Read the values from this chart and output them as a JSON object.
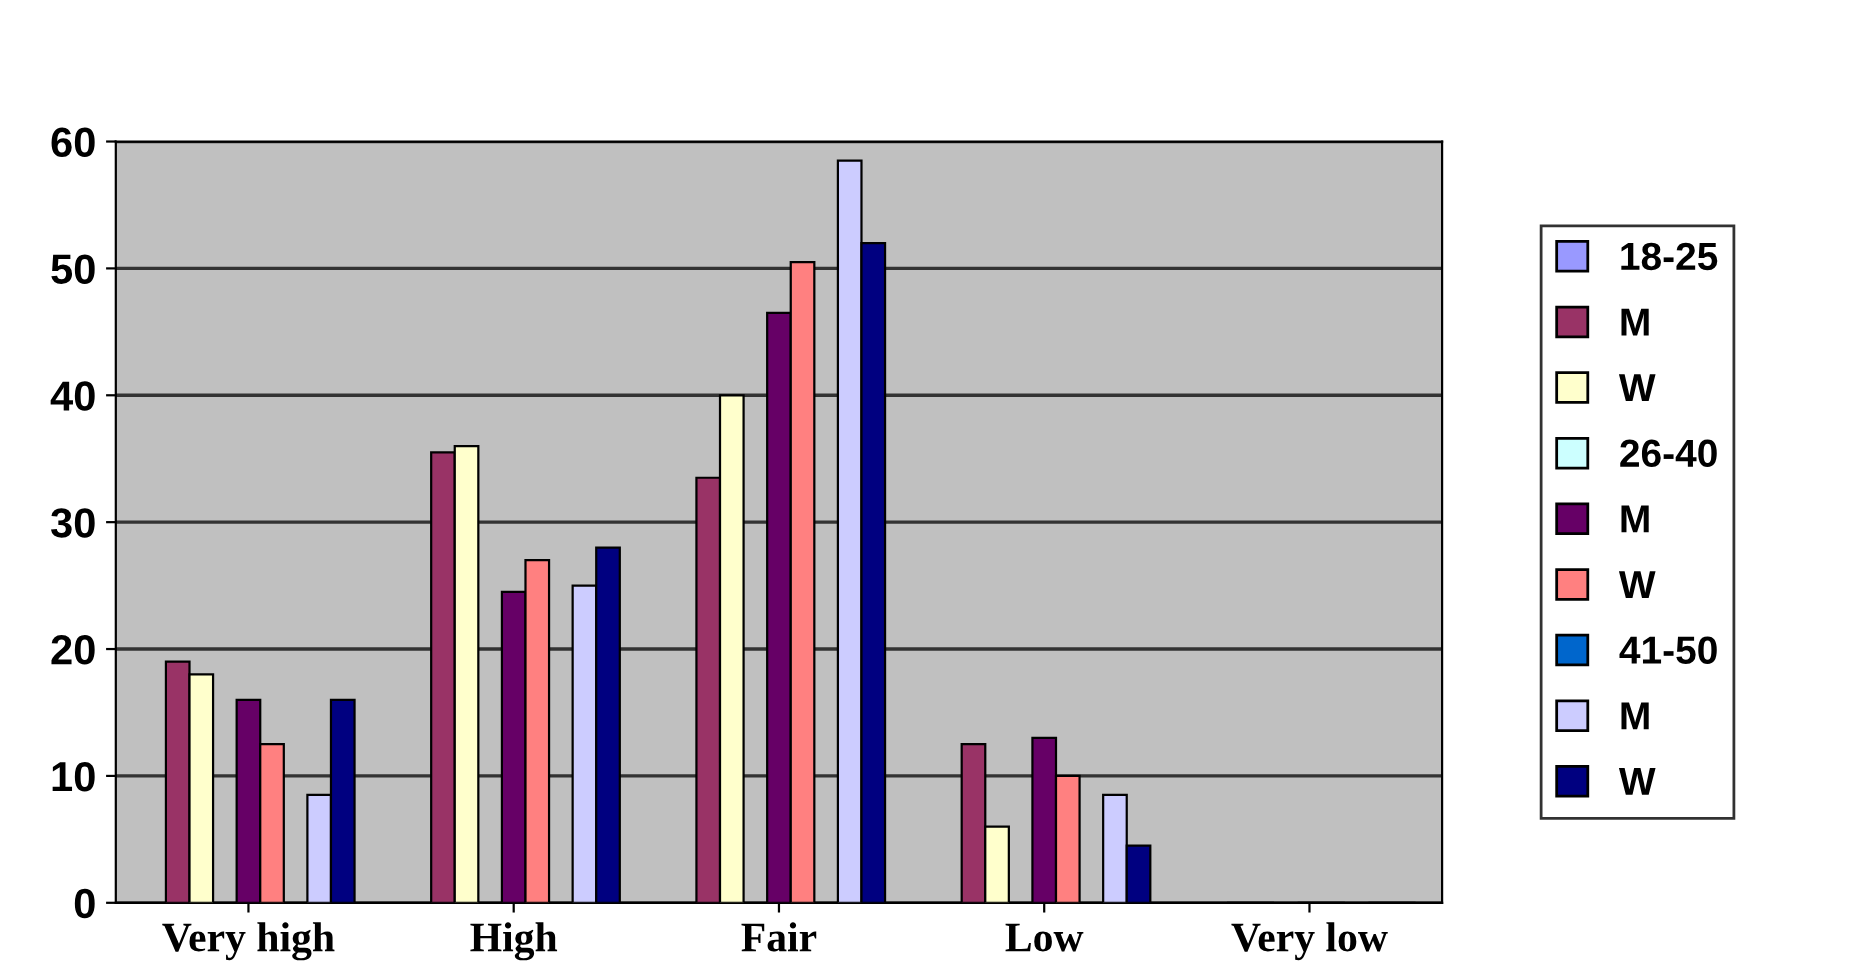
{
  "chart_data": {
    "type": "bar",
    "categories": [
      "Very high",
      "High",
      "Fair",
      "Low",
      "Very low"
    ],
    "series": [
      {
        "name": "18-25",
        "color": "#9999ff",
        "values": [
          null,
          null,
          null,
          null,
          null
        ]
      },
      {
        "name": "M",
        "color": "#993366",
        "values": [
          19,
          35.5,
          33.5,
          12.5,
          0
        ]
      },
      {
        "name": "W",
        "color": "#ffffcc",
        "values": [
          18,
          36,
          40,
          6,
          0
        ]
      },
      {
        "name": "26-40",
        "color": "#ccffff",
        "values": [
          null,
          null,
          null,
          null,
          null
        ]
      },
      {
        "name": "M",
        "color": "#660066",
        "values": [
          16,
          24.5,
          46.5,
          13,
          0
        ]
      },
      {
        "name": "W",
        "color": "#ff8080",
        "values": [
          12.5,
          27,
          50.5,
          10,
          0
        ]
      },
      {
        "name": "41-50",
        "color": "#0066cc",
        "values": [
          null,
          null,
          null,
          null,
          null
        ]
      },
      {
        "name": "M",
        "color": "#ccccff",
        "values": [
          8.5,
          25,
          58.5,
          8.5,
          0
        ]
      },
      {
        "name": "W",
        "color": "#000080",
        "values": [
          16,
          28,
          52,
          4.5,
          0
        ]
      }
    ],
    "ylim": [
      0,
      60
    ],
    "yticks": [
      0,
      10,
      20,
      30,
      40,
      50,
      60
    ],
    "grid": "y",
    "legend": "right"
  }
}
